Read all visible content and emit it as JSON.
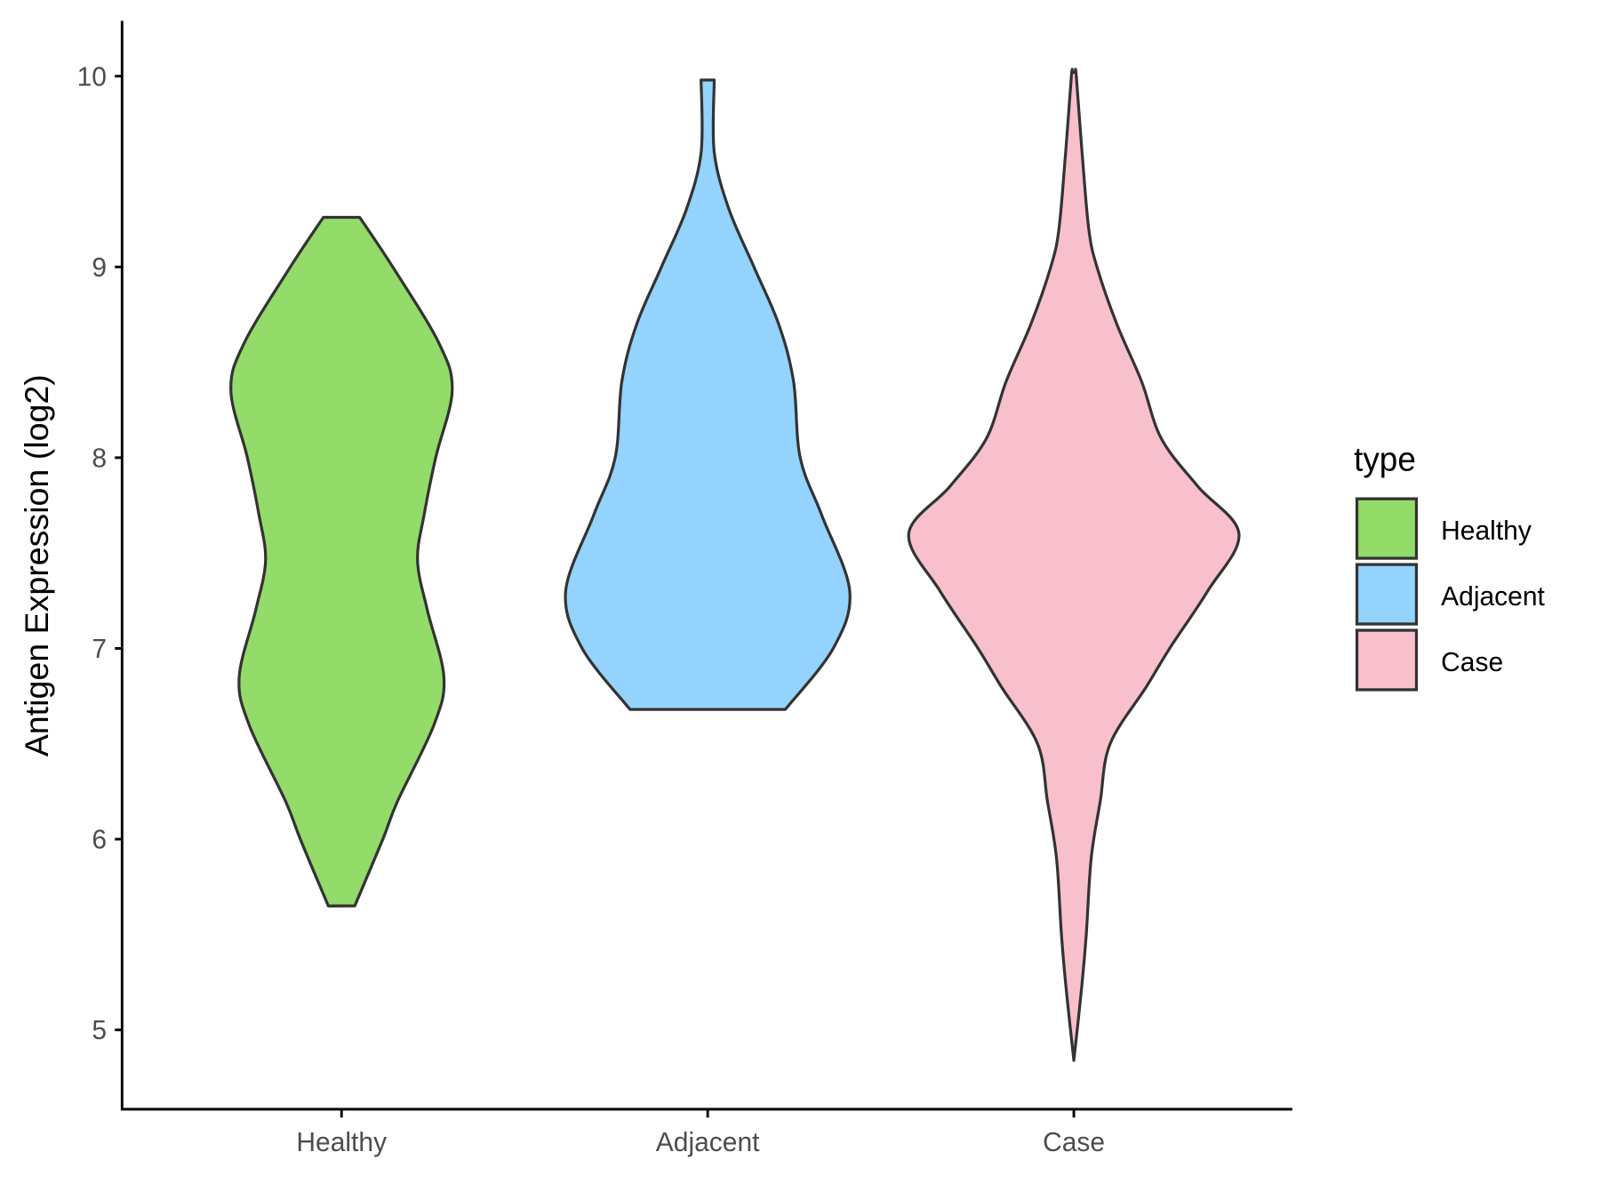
{
  "chart_data": {
    "type": "violin",
    "title": "",
    "xlabel": "",
    "ylabel": "Antigen Expression (log2)",
    "ylim": [
      4.6,
      10.3
    ],
    "yticks": [
      5,
      6,
      7,
      8,
      9,
      10
    ],
    "categories": [
      "Healthy",
      "Adjacent",
      "Case"
    ],
    "grid": false,
    "legend": {
      "title": "type",
      "placement": "right",
      "entries": [
        "Healthy",
        "Adjacent",
        "Case"
      ]
    },
    "colors": {
      "Healthy": "#93dc69",
      "Adjacent": "#93d3fd",
      "Case": "#f8c0cc",
      "outline": "#333333"
    },
    "series": [
      {
        "category": "Healthy",
        "min": 5.65,
        "max": 9.26,
        "density_profile": [
          [
            5.65,
            0.08
          ],
          [
            6.0,
            0.25
          ],
          [
            6.2,
            0.34
          ],
          [
            6.6,
            0.56
          ],
          [
            6.85,
            0.62
          ],
          [
            7.2,
            0.52
          ],
          [
            7.46,
            0.46
          ],
          [
            7.7,
            0.5
          ],
          [
            8.0,
            0.57
          ],
          [
            8.35,
            0.67
          ],
          [
            8.6,
            0.59
          ],
          [
            9.0,
            0.31
          ],
          [
            9.26,
            0.11
          ]
        ]
      },
      {
        "category": "Adjacent",
        "min": 6.68,
        "max": 9.98,
        "density_profile": [
          [
            6.68,
            0.47
          ],
          [
            7.0,
            0.76
          ],
          [
            7.3,
            0.86
          ],
          [
            7.7,
            0.69
          ],
          [
            8.0,
            0.56
          ],
          [
            8.4,
            0.52
          ],
          [
            8.7,
            0.43
          ],
          [
            9.0,
            0.28
          ],
          [
            9.3,
            0.13
          ],
          [
            9.6,
            0.04
          ],
          [
            9.98,
            0.04
          ]
        ]
      },
      {
        "category": "Case",
        "min": 4.84,
        "max": 10.02,
        "density_profile": [
          [
            4.84,
            0.0
          ],
          [
            5.2,
            0.045
          ],
          [
            5.5,
            0.075
          ],
          [
            5.9,
            0.105
          ],
          [
            6.2,
            0.16
          ],
          [
            6.5,
            0.22
          ],
          [
            6.8,
            0.44
          ],
          [
            7.0,
            0.58
          ],
          [
            7.3,
            0.81
          ],
          [
            7.6,
            1.0
          ],
          [
            7.85,
            0.75
          ],
          [
            8.1,
            0.53
          ],
          [
            8.4,
            0.41
          ],
          [
            8.7,
            0.26
          ],
          [
            9.0,
            0.14
          ],
          [
            9.2,
            0.09
          ],
          [
            9.6,
            0.05
          ],
          [
            10.0,
            0.015
          ],
          [
            10.02,
            0.01
          ]
        ]
      }
    ]
  }
}
